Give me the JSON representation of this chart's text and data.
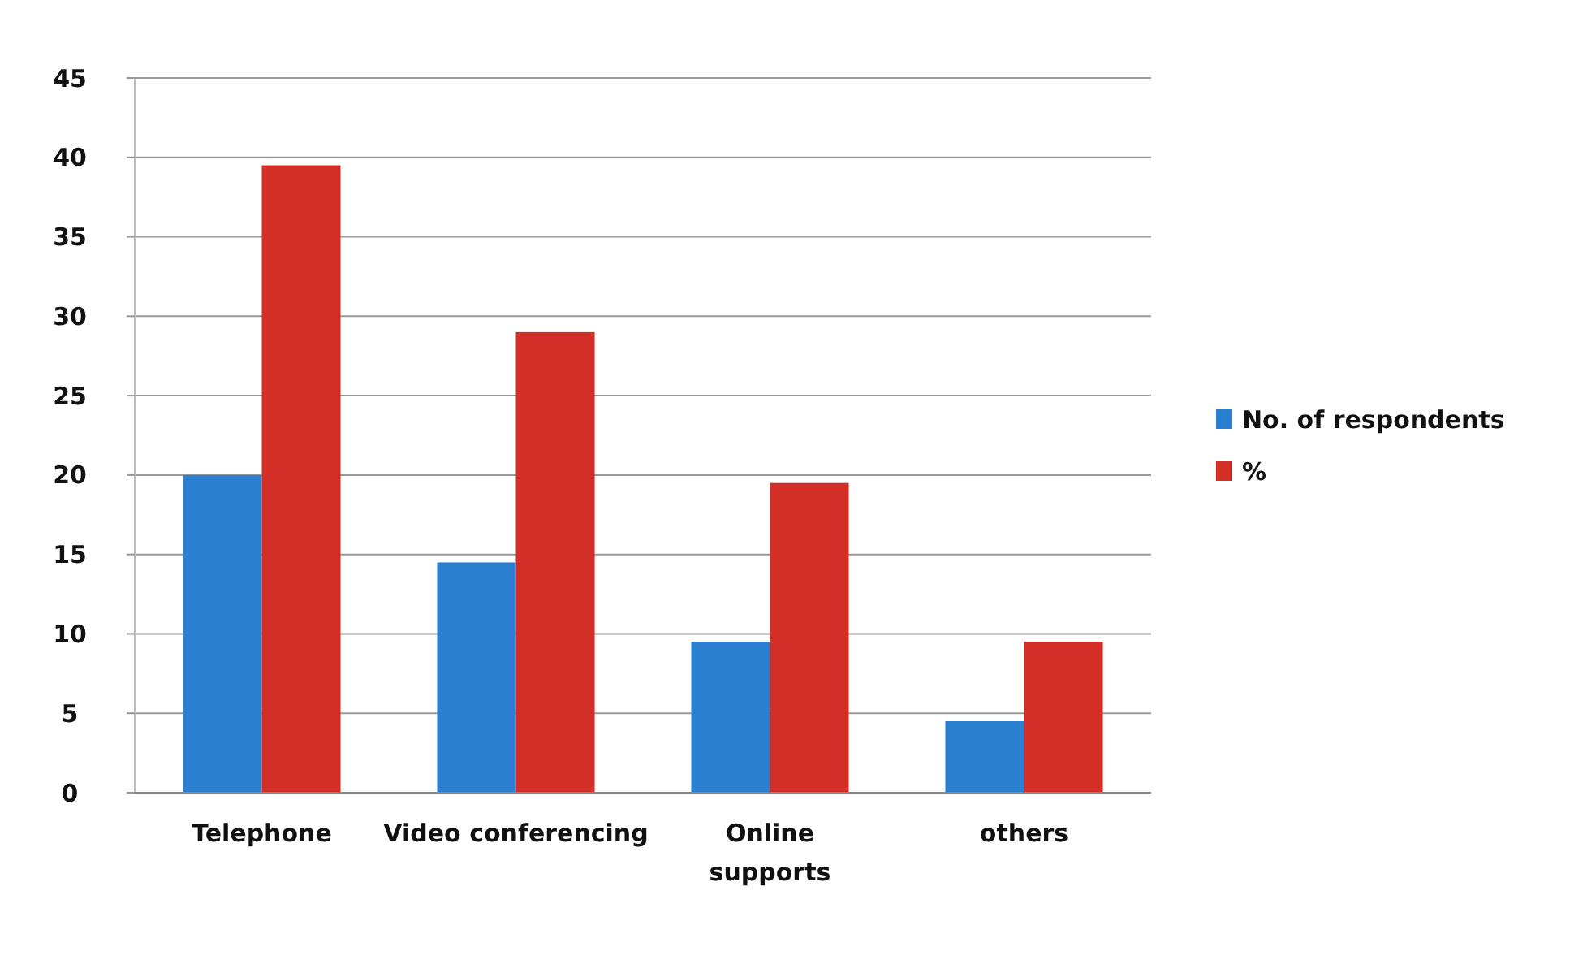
{
  "chart_data": {
    "type": "bar",
    "categories": [
      "Telephone",
      "Video conferencing",
      "Online supports",
      "others"
    ],
    "series": [
      {
        "name": "No. of respondents",
        "color": "#2a7fd0",
        "values": [
          20,
          14.5,
          9.5,
          4.5
        ]
      },
      {
        "name": "%",
        "color": "#d42f27",
        "values": [
          39.5,
          29,
          19.5,
          9.5
        ]
      }
    ],
    "ylim": [
      0,
      45
    ],
    "yticks": [
      0,
      5,
      10,
      15,
      20,
      25,
      30,
      35,
      40,
      45
    ],
    "grid": "y",
    "legend": "right"
  }
}
